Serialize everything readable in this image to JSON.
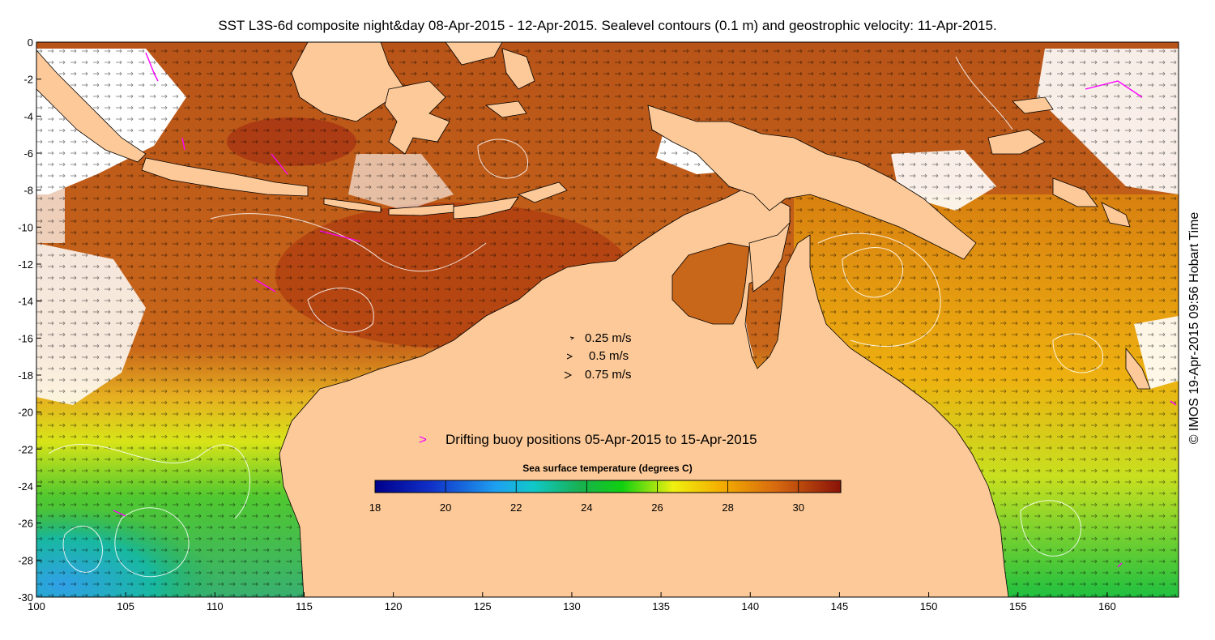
{
  "title": "SST L3S-6d composite night&day 08-Apr-2015 - 12-Apr-2015. Sealevel contours (0.1 m) and geostrophic velocity: 11-Apr-2015.",
  "credit": "© IMOS 19-Apr-2015 09:56 Hobart Time",
  "axes": {
    "x_ticks": [
      "100",
      "105",
      "110",
      "115",
      "120",
      "125",
      "130",
      "135",
      "140",
      "145",
      "150",
      "155",
      "160"
    ],
    "y_ticks": [
      "0",
      "-2",
      "-4",
      "-6",
      "-8",
      "-10",
      "-12",
      "-14",
      "-16",
      "-18",
      "-20",
      "-22",
      "-24",
      "-26",
      "-28",
      "-30"
    ],
    "lon_range": [
      100,
      164
    ],
    "lat_range": [
      -30,
      0
    ]
  },
  "velocity_legend": [
    {
      "label": "0.25 m/s",
      "speed": 0.25
    },
    {
      "label": "0.5 m/s",
      "speed": 0.5
    },
    {
      "label": "0.75 m/s",
      "speed": 0.75
    }
  ],
  "buoy_legend": {
    "symbol": ">",
    "label": "Drifting buoy positions 05-Apr-2015 to 15-Apr-2015",
    "color": "#ff00ff"
  },
  "colorbar": {
    "title": "Sea surface temperature (degrees C)",
    "ticks": [
      "18",
      "20",
      "22",
      "24",
      "26",
      "28",
      "30"
    ],
    "range": [
      18,
      31.2
    ]
  },
  "colors": {
    "land": "#fdc998",
    "no_data": "#ffffff",
    "contour": "#ffffff",
    "coastline": "#000000"
  }
}
